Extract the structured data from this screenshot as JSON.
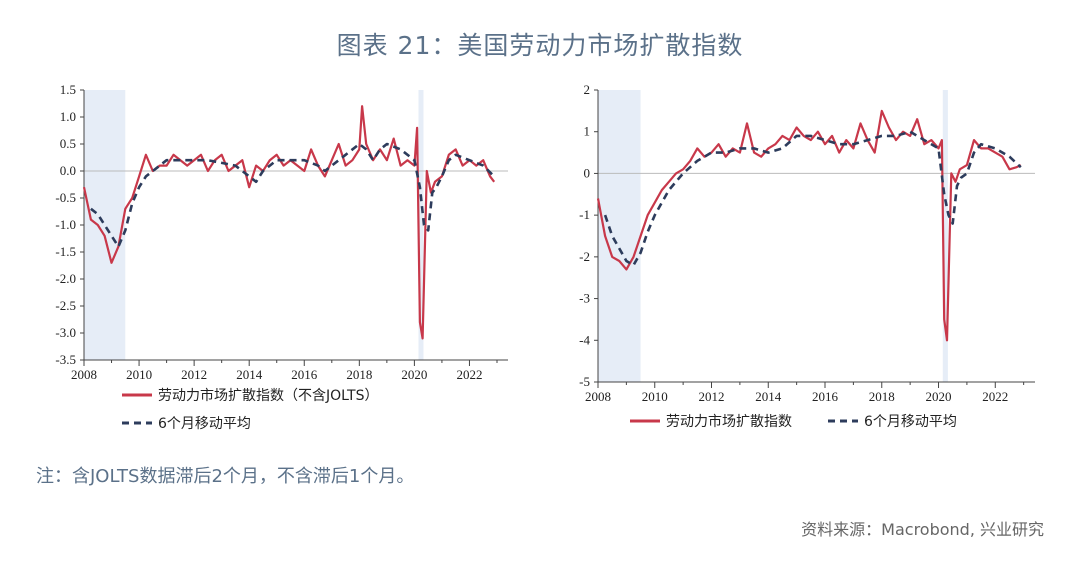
{
  "title": "图表 21：美国劳动力市场扩散指数",
  "note": "注：含JOLTS数据滞后2个月，不含滞后1个月。",
  "source": "资料来源：Macrobond, 兴业研究",
  "colors": {
    "series": "#c8384a",
    "ma": "#2d3c5c",
    "shade": "#e6edf7",
    "axis": "#444444",
    "zero": "#bbbbbb"
  },
  "chart_data": [
    {
      "type": "line",
      "xlim": [
        2008,
        2023.4
      ],
      "ylim": [
        -3.5,
        1.5
      ],
      "yticks": [
        1.5,
        1.0,
        0.5,
        0.0,
        -0.5,
        -1.0,
        -1.5,
        -2.0,
        -2.5,
        -3.0,
        -3.5
      ],
      "ytick_labels": [
        "1.5",
        "1.0",
        "0.5",
        "0.0",
        "-0.5",
        "-1.0",
        "-1.5",
        "-2.0",
        "-2.5",
        "-3.0",
        "-3.5"
      ],
      "xticks": [
        2008,
        2010,
        2012,
        2014,
        2016,
        2018,
        2020,
        2022
      ],
      "shaded": [
        [
          2008.0,
          2009.5
        ],
        [
          2020.15,
          2020.33
        ]
      ],
      "series": [
        {
          "name": "劳动力市场扩散指数（不含JOLTS）",
          "style": "solid",
          "x": [
            2008.0,
            2008.25,
            2008.5,
            2008.75,
            2009.0,
            2009.25,
            2009.5,
            2009.75,
            2010.0,
            2010.25,
            2010.5,
            2010.75,
            2011.0,
            2011.25,
            2011.5,
            2011.75,
            2012.0,
            2012.25,
            2012.5,
            2012.75,
            2013.0,
            2013.25,
            2013.5,
            2013.75,
            2014.0,
            2014.25,
            2014.5,
            2014.75,
            2015.0,
            2015.25,
            2015.5,
            2015.75,
            2016.0,
            2016.25,
            2016.5,
            2016.75,
            2017.0,
            2017.25,
            2017.5,
            2017.75,
            2018.0,
            2018.1,
            2018.25,
            2018.5,
            2018.75,
            2019.0,
            2019.25,
            2019.5,
            2019.75,
            2020.0,
            2020.1,
            2020.2,
            2020.3,
            2020.45,
            2020.6,
            2020.75,
            2021.0,
            2021.25,
            2021.5,
            2021.75,
            2022.0,
            2022.25,
            2022.5,
            2022.75,
            2022.9
          ],
          "values": [
            -0.3,
            -0.9,
            -1.0,
            -1.2,
            -1.7,
            -1.4,
            -0.7,
            -0.5,
            -0.1,
            0.3,
            0.0,
            0.1,
            0.1,
            0.3,
            0.2,
            0.1,
            0.2,
            0.3,
            0.0,
            0.2,
            0.3,
            0.0,
            0.1,
            0.2,
            -0.3,
            0.1,
            0.0,
            0.2,
            0.3,
            0.1,
            0.2,
            0.1,
            0.0,
            0.4,
            0.1,
            -0.1,
            0.2,
            0.5,
            0.1,
            0.2,
            0.4,
            1.2,
            0.5,
            0.2,
            0.4,
            0.2,
            0.6,
            0.1,
            0.2,
            0.1,
            0.8,
            -2.8,
            -3.1,
            0.0,
            -0.4,
            -0.2,
            -0.1,
            0.3,
            0.4,
            0.1,
            0.2,
            0.1,
            0.2,
            -0.1,
            -0.2
          ]
        },
        {
          "name": "6个月移动平均",
          "style": "dashed",
          "x": [
            2008.25,
            2008.5,
            2008.75,
            2009.0,
            2009.25,
            2009.5,
            2009.75,
            2010.0,
            2010.25,
            2010.5,
            2010.75,
            2011.0,
            2011.5,
            2012.0,
            2012.5,
            2013.0,
            2013.5,
            2014.0,
            2014.25,
            2014.5,
            2015.0,
            2015.5,
            2016.0,
            2016.5,
            2016.75,
            2017.0,
            2017.5,
            2018.0,
            2018.25,
            2018.5,
            2018.75,
            2019.0,
            2019.5,
            2020.0,
            2020.2,
            2020.35,
            2020.5,
            2020.65,
            2020.8,
            2021.0,
            2021.25,
            2021.5,
            2022.0,
            2022.5,
            2022.9
          ],
          "values": [
            -0.7,
            -0.8,
            -1.0,
            -1.2,
            -1.4,
            -1.1,
            -0.6,
            -0.3,
            -0.1,
            0.0,
            0.1,
            0.2,
            0.2,
            0.2,
            0.2,
            0.15,
            0.1,
            -0.1,
            -0.2,
            0.0,
            0.2,
            0.2,
            0.2,
            0.1,
            0.0,
            0.1,
            0.3,
            0.5,
            0.4,
            0.2,
            0.4,
            0.5,
            0.4,
            0.2,
            -0.3,
            -1.0,
            -1.1,
            -0.4,
            -0.3,
            -0.1,
            0.2,
            0.3,
            0.2,
            0.1,
            -0.1
          ]
        }
      ]
    },
    {
      "type": "line",
      "xlim": [
        2008,
        2023.4
      ],
      "ylim": [
        -5,
        2
      ],
      "yticks": [
        2,
        1,
        0,
        -1,
        -2,
        -3,
        -4,
        -5
      ],
      "ytick_labels": [
        "2",
        "1",
        "0",
        "-1",
        "-2",
        "-3",
        "-4",
        "-5"
      ],
      "xticks": [
        2008,
        2010,
        2012,
        2014,
        2016,
        2018,
        2020,
        2022
      ],
      "shaded": [
        [
          2008.0,
          2009.5
        ],
        [
          2020.15,
          2020.33
        ]
      ],
      "series": [
        {
          "name": "劳动力市场扩散指数",
          "style": "solid",
          "x": [
            2008.0,
            2008.25,
            2008.5,
            2008.75,
            2009.0,
            2009.25,
            2009.5,
            2009.75,
            2010.0,
            2010.25,
            2010.5,
            2010.75,
            2011.0,
            2011.25,
            2011.5,
            2011.75,
            2012.0,
            2012.25,
            2012.5,
            2012.75,
            2013.0,
            2013.25,
            2013.5,
            2013.75,
            2014.0,
            2014.25,
            2014.5,
            2014.75,
            2015.0,
            2015.25,
            2015.5,
            2015.75,
            2016.0,
            2016.25,
            2016.5,
            2016.75,
            2017.0,
            2017.25,
            2017.5,
            2017.75,
            2018.0,
            2018.25,
            2018.5,
            2018.75,
            2019.0,
            2019.25,
            2019.5,
            2019.75,
            2020.0,
            2020.12,
            2020.2,
            2020.3,
            2020.45,
            2020.6,
            2020.75,
            2021.0,
            2021.25,
            2021.5,
            2021.75,
            2022.0,
            2022.25,
            2022.5,
            2022.75,
            2022.9
          ],
          "values": [
            -0.6,
            -1.5,
            -2.0,
            -2.1,
            -2.3,
            -2.0,
            -1.5,
            -1.0,
            -0.7,
            -0.4,
            -0.2,
            0.0,
            0.1,
            0.3,
            0.6,
            0.4,
            0.5,
            0.7,
            0.4,
            0.6,
            0.5,
            1.2,
            0.5,
            0.4,
            0.6,
            0.7,
            0.9,
            0.8,
            1.1,
            0.9,
            0.8,
            1.0,
            0.7,
            0.9,
            0.5,
            0.8,
            0.6,
            1.2,
            0.8,
            0.5,
            1.5,
            1.1,
            0.8,
            1.0,
            0.9,
            1.3,
            0.7,
            0.8,
            0.6,
            0.8,
            -3.5,
            -4.0,
            0.0,
            -0.2,
            0.1,
            0.2,
            0.8,
            0.6,
            0.6,
            0.5,
            0.4,
            0.1,
            0.15,
            0.2
          ]
        },
        {
          "name": "6个月移动平均",
          "style": "dashed",
          "x": [
            2008.25,
            2008.5,
            2008.75,
            2009.0,
            2009.25,
            2009.5,
            2009.75,
            2010.0,
            2010.5,
            2011.0,
            2011.5,
            2012.0,
            2012.5,
            2013.0,
            2013.5,
            2014.0,
            2014.5,
            2015.0,
            2015.5,
            2016.0,
            2016.5,
            2017.0,
            2017.5,
            2018.0,
            2018.5,
            2019.0,
            2019.5,
            2020.0,
            2020.2,
            2020.35,
            2020.5,
            2020.65,
            2020.8,
            2021.0,
            2021.25,
            2021.5,
            2022.0,
            2022.5,
            2022.9
          ],
          "values": [
            -1.0,
            -1.5,
            -1.8,
            -2.1,
            -2.2,
            -1.9,
            -1.4,
            -1.0,
            -0.4,
            0.0,
            0.3,
            0.5,
            0.5,
            0.6,
            0.6,
            0.5,
            0.6,
            0.9,
            0.9,
            0.8,
            0.7,
            0.7,
            0.8,
            0.9,
            0.9,
            1.0,
            0.8,
            0.6,
            -0.5,
            -1.0,
            -1.2,
            -0.3,
            -0.1,
            0.0,
            0.5,
            0.7,
            0.6,
            0.4,
            0.15
          ]
        }
      ]
    }
  ]
}
